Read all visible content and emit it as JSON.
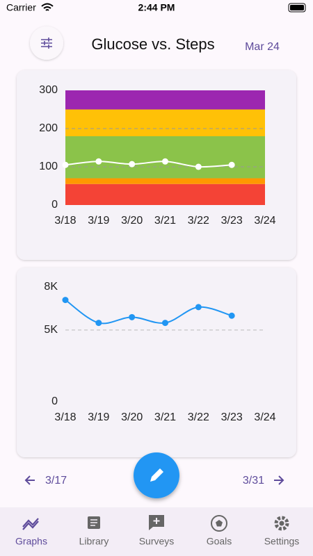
{
  "status_bar": {
    "carrier": "Carrier",
    "time": "2:44 PM"
  },
  "header": {
    "title": "Glucose vs. Steps",
    "date": "Mar 24"
  },
  "chart_data": [
    {
      "type": "line",
      "categories": [
        "3/18",
        "3/19",
        "3/20",
        "3/21",
        "3/22",
        "3/23",
        "3/24"
      ],
      "values": [
        105,
        114,
        107,
        114,
        100,
        105,
        null
      ],
      "color": "#ffffff",
      "ylim": [
        0,
        300
      ],
      "yticks": [
        0,
        100,
        200,
        300
      ],
      "bands": [
        {
          "from": 0,
          "to": 55,
          "color": "#f44336"
        },
        {
          "from": 55,
          "to": 70,
          "color": "#ff9800"
        },
        {
          "from": 70,
          "to": 180,
          "color": "#8bc34a"
        },
        {
          "from": 180,
          "to": 250,
          "color": "#ffc107"
        },
        {
          "from": 250,
          "to": 300,
          "color": "#9c27b0"
        }
      ]
    },
    {
      "type": "line",
      "categories": [
        "3/18",
        "3/19",
        "3/20",
        "3/21",
        "3/22",
        "3/23",
        "3/24"
      ],
      "values": [
        7100,
        5500,
        5900,
        5500,
        6600,
        6000,
        null
      ],
      "color": "#2196f3",
      "ylim": [
        0,
        8000
      ],
      "yticks": [
        0,
        {
          "value": 5000,
          "label": "5K"
        },
        {
          "value": 8000,
          "label": "8K"
        }
      ]
    }
  ],
  "nav": {
    "prev": "3/17",
    "next": "3/31"
  },
  "tabs": [
    "Graphs",
    "Library",
    "Surveys",
    "Goals",
    "Settings"
  ]
}
